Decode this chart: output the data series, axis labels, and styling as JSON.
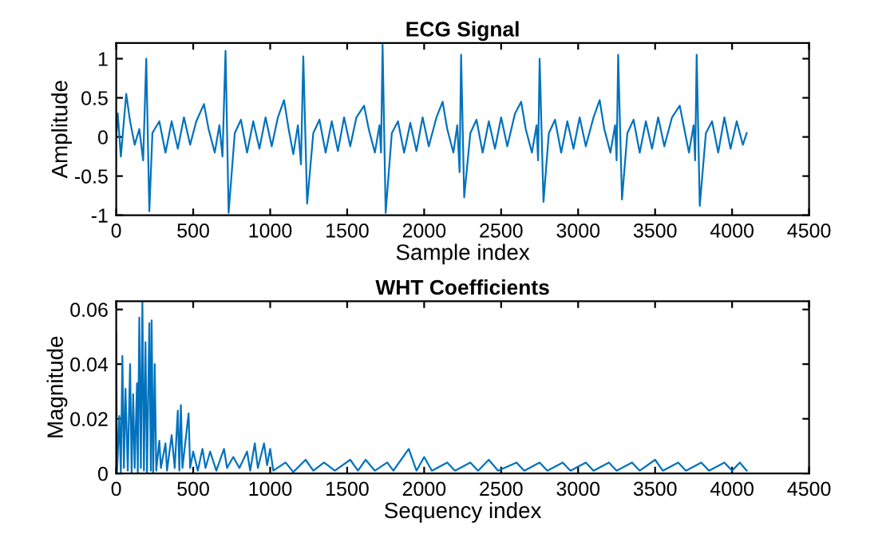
{
  "chart_data": [
    {
      "type": "line",
      "title": "ECG Signal",
      "xlabel": "Sample index",
      "ylabel": "Amplitude",
      "xlim": [
        0,
        4500
      ],
      "ylim": [
        -1,
        1.2
      ],
      "xticks": [
        0,
        500,
        1000,
        1500,
        2000,
        2500,
        3000,
        3500,
        4000,
        4500
      ],
      "yticks": [
        -1,
        -0.5,
        0,
        0.5,
        1
      ],
      "grid": false,
      "series": [
        {
          "color": "#0072bd",
          "x": [
            0,
            10,
            30,
            65,
            90,
            120,
            150,
            175,
            195,
            215,
            235,
            280,
            320,
            360,
            400,
            440,
            480,
            520,
            570,
            600,
            640,
            670,
            690,
            710,
            730,
            770,
            810,
            850,
            890,
            930,
            970,
            1010,
            1050,
            1090,
            1120,
            1150,
            1180,
            1200,
            1215,
            1240,
            1280,
            1320,
            1360,
            1400,
            1440,
            1480,
            1520,
            1560,
            1610,
            1640,
            1680,
            1710,
            1720,
            1730,
            1750,
            1790,
            1830,
            1870,
            1910,
            1950,
            1990,
            2030,
            2080,
            2120,
            2150,
            2190,
            2215,
            2230,
            2240,
            2260,
            2300,
            2340,
            2380,
            2420,
            2460,
            2500,
            2540,
            2590,
            2630,
            2660,
            2700,
            2730,
            2740,
            2750,
            2775,
            2810,
            2850,
            2890,
            2930,
            2970,
            3010,
            3050,
            3100,
            3140,
            3170,
            3210,
            3240,
            3250,
            3260,
            3285,
            3320,
            3360,
            3400,
            3440,
            3480,
            3520,
            3560,
            3610,
            3660,
            3690,
            3720,
            3750,
            3760,
            3770,
            3790,
            3830,
            3870,
            3910,
            3950,
            3990,
            4030,
            4070,
            4095
          ],
          "values": [
            0.0,
            0.3,
            -0.25,
            0.55,
            0.2,
            -0.1,
            0.1,
            -0.3,
            1.0,
            -0.95,
            0.05,
            0.2,
            -0.2,
            0.2,
            -0.15,
            0.25,
            -0.1,
            0.2,
            0.42,
            0.1,
            -0.2,
            0.15,
            -0.25,
            1.1,
            -0.97,
            0.05,
            0.22,
            -0.2,
            0.2,
            -0.15,
            0.25,
            -0.12,
            0.25,
            0.47,
            0.1,
            -0.22,
            0.15,
            -0.35,
            1.03,
            -0.85,
            0.05,
            0.22,
            -0.2,
            0.2,
            -0.18,
            0.25,
            -0.12,
            0.25,
            0.4,
            0.1,
            -0.2,
            0.15,
            -0.2,
            1.18,
            -0.97,
            0.05,
            0.2,
            -0.2,
            0.18,
            -0.18,
            0.25,
            -0.12,
            0.25,
            0.45,
            0.1,
            -0.2,
            0.15,
            -0.45,
            1.05,
            -0.77,
            0.05,
            0.22,
            -0.2,
            0.2,
            -0.15,
            0.25,
            -0.12,
            0.3,
            0.45,
            0.1,
            -0.2,
            0.15,
            -0.3,
            1.0,
            -0.83,
            0.05,
            0.22,
            -0.2,
            0.2,
            -0.15,
            0.25,
            -0.12,
            0.25,
            0.47,
            0.1,
            -0.2,
            0.15,
            -0.3,
            1.05,
            -0.8,
            0.05,
            0.22,
            -0.2,
            0.2,
            -0.15,
            0.25,
            -0.12,
            0.25,
            0.4,
            0.1,
            -0.2,
            0.15,
            -0.3,
            1.05,
            -0.88,
            0.05,
            0.2,
            -0.2,
            0.25,
            -0.15,
            0.2,
            -0.1,
            0.05
          ]
        }
      ]
    },
    {
      "type": "line",
      "title": "WHT Coefficients",
      "xlabel": "Sequency index",
      "ylabel": "Magnitude",
      "xlim": [
        0,
        4500
      ],
      "ylim": [
        0,
        0.063
      ],
      "xticks": [
        0,
        500,
        1000,
        1500,
        2000,
        2500,
        3000,
        3500,
        4000,
        4500
      ],
      "yticks": [
        0,
        0.02,
        0.04,
        0.06
      ],
      "grid": false,
      "series": [
        {
          "color": "#0072bd",
          "x": [
            0,
            5,
            20,
            30,
            40,
            50,
            60,
            75,
            90,
            100,
            110,
            120,
            135,
            140,
            150,
            160,
            170,
            180,
            190,
            200,
            215,
            225,
            230,
            240,
            250,
            260,
            280,
            290,
            320,
            330,
            360,
            380,
            400,
            410,
            420,
            430,
            470,
            480,
            500,
            530,
            560,
            580,
            610,
            650,
            700,
            720,
            760,
            800,
            850,
            870,
            900,
            920,
            960,
            980,
            1000,
            1020,
            1100,
            1150,
            1230,
            1280,
            1350,
            1420,
            1520,
            1570,
            1620,
            1680,
            1760,
            1800,
            1900,
            1950,
            2000,
            2050,
            2150,
            2200,
            2300,
            2350,
            2420,
            2480,
            2600,
            2650,
            2750,
            2800,
            2900,
            2950,
            3050,
            3100,
            3200,
            3250,
            3350,
            3400,
            3500,
            3550,
            3650,
            3700,
            3800,
            3850,
            3950,
            4000,
            4050,
            4095
          ],
          "values": [
            0.052,
            0.0,
            0.021,
            0.0,
            0.043,
            0.002,
            0.031,
            0.001,
            0.04,
            0.0,
            0.029,
            0.002,
            0.033,
            0.0,
            0.057,
            0.002,
            0.063,
            0.001,
            0.048,
            0.0,
            0.055,
            0.001,
            0.056,
            0.0,
            0.04,
            0.001,
            0.012,
            0.002,
            0.011,
            0.001,
            0.014,
            0.002,
            0.023,
            0.001,
            0.025,
            0.002,
            0.022,
            0.002,
            0.008,
            0.001,
            0.009,
            0.002,
            0.008,
            0.001,
            0.009,
            0.002,
            0.006,
            0.002,
            0.008,
            0.001,
            0.011,
            0.002,
            0.011,
            0.003,
            0.009,
            0.001,
            0.004,
            0.0005,
            0.005,
            0.001,
            0.004,
            0.001,
            0.005,
            0.001,
            0.005,
            0.001,
            0.004,
            0.001,
            0.009,
            0.001,
            0.006,
            0.001,
            0.004,
            0.001,
            0.004,
            0.001,
            0.005,
            0.001,
            0.004,
            0.001,
            0.004,
            0.001,
            0.004,
            0.001,
            0.004,
            0.001,
            0.004,
            0.001,
            0.004,
            0.001,
            0.005,
            0.001,
            0.004,
            0.001,
            0.004,
            0.001,
            0.004,
            0.001,
            0.004,
            0.001
          ]
        }
      ]
    }
  ]
}
